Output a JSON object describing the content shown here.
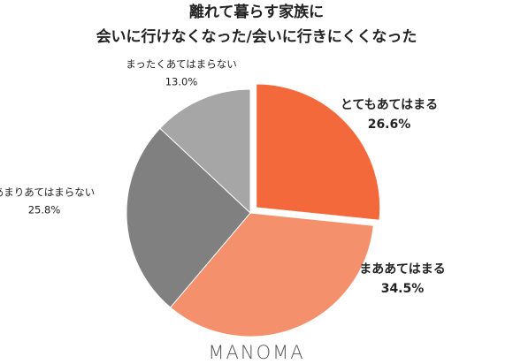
{
  "chart_data": {
    "type": "pie",
    "title": [
      "離れて暮らす家族に",
      "会いに行けなくなった/会いに行きにくくなった"
    ],
    "categories": [
      "とてもあてはまる",
      "まああてはまる",
      "あまりあてはまらない",
      "まったくあてはまらない"
    ],
    "values": [
      26.6,
      34.5,
      25.8,
      13.0
    ],
    "value_labels": [
      "26.6%",
      "34.5%",
      "25.8%",
      "13.0%"
    ],
    "colors": [
      "#f4693c",
      "#f4906c",
      "#808080",
      "#a6a6a6"
    ],
    "exploded": [
      0
    ]
  },
  "brand": "MANOMA"
}
